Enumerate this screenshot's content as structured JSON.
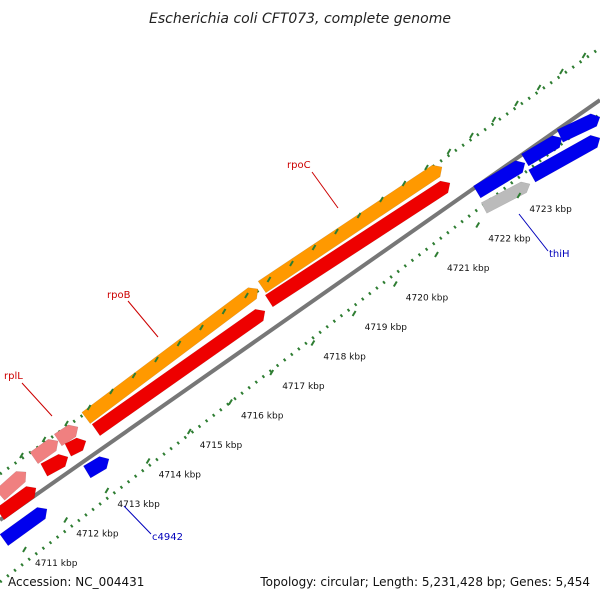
{
  "title": "Escherichia coli CFT073, complete genome",
  "footer": {
    "accession": "Accession: NC_004431",
    "summary": "Topology: circular; Length: 5,231,428 bp; Genes: 5,454"
  },
  "ticks": [
    {
      "label": "4711 kbp",
      "kbp": 4711
    },
    {
      "label": "4712 kbp",
      "kbp": 4712
    },
    {
      "label": "4713 kbp",
      "kbp": 4713
    },
    {
      "label": "4714 kbp",
      "kbp": 4714
    },
    {
      "label": "4715 kbp",
      "kbp": 4715
    },
    {
      "label": "4716 kbp",
      "kbp": 4716
    },
    {
      "label": "4717 kbp",
      "kbp": 4717
    },
    {
      "label": "4718 kbp",
      "kbp": 4718
    },
    {
      "label": "4719 kbp",
      "kbp": 4719
    },
    {
      "label": "4720 kbp",
      "kbp": 4720
    },
    {
      "label": "4721 kbp",
      "kbp": 4721
    },
    {
      "label": "4722 kbp",
      "kbp": 4722
    },
    {
      "label": "4723 kbp",
      "kbp": 4723
    }
  ],
  "gene_labels": [
    {
      "name": "rpoC",
      "color": "#cc0000"
    },
    {
      "name": "rpoB",
      "color": "#cc0000"
    },
    {
      "name": "rplL",
      "color": "#cc0000"
    },
    {
      "name": "thiH",
      "color": "#0000bb"
    },
    {
      "name": "c4942",
      "color": "#0000bb"
    }
  ],
  "colors": {
    "backbone": "#777777",
    "tick_marks": "#2e7d32",
    "rna_polymerase": "#ff9900",
    "ribosomal": "#ee0000",
    "ribosomal_light": "#f08080",
    "other_cds": "#0000ee",
    "grey_cds": "#bbbbbb"
  }
}
